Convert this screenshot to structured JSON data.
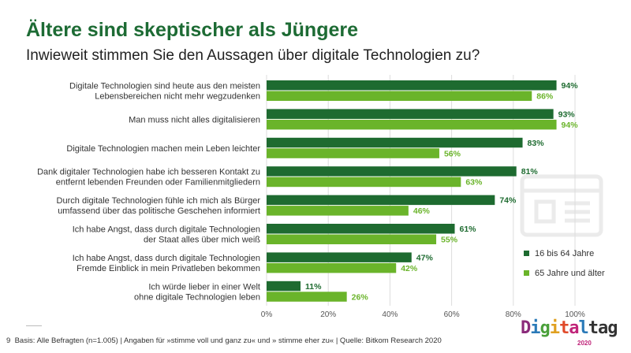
{
  "title": "Ältere sind skeptischer als Jüngere",
  "subtitle": "Inwieweit stimmen Sie den Aussagen über digitale Technologien zu?",
  "footer": {
    "page": "9",
    "text": "Basis: Alle Befragten (n=1.005) | Angaben für »stimme voll und ganz zu« und » stimme eher zu« | Quelle: Bitkom Research 2020"
  },
  "logo": {
    "text": "Digitaltag",
    "year": "2020"
  },
  "colors": {
    "dark": "#1e6b30",
    "light": "#6ab42a",
    "title": "#1d6b34"
  },
  "chart_data": {
    "type": "bar",
    "orientation": "horizontal",
    "categories": [
      [
        "Digitale Technologien sind heute aus den meisten",
        "Lebensbereichen nicht mehr wegzudenken"
      ],
      [
        "Man muss nicht alles digitalisieren"
      ],
      [
        "Digitale Technologien machen mein Leben leichter"
      ],
      [
        "Dank digitaler Technologien habe ich besseren Kontakt zu",
        "entfernt lebenden Freunden oder Familienmitgliedern"
      ],
      [
        "Durch digitale Technologien fühle ich mich als Bürger",
        "umfassend über das politische Geschehen informiert"
      ],
      [
        "Ich habe Angst, dass durch digitale Technologien",
        "der Staat alles über mich weiß"
      ],
      [
        "Ich habe Angst, dass durch digitale Technologien",
        "Fremde Einblick in mein Privatleben bekommen"
      ],
      [
        "Ich würde lieber in einer Welt",
        "ohne digitale Technologien leben"
      ]
    ],
    "series": [
      {
        "name": "16 bis 64 Jahre",
        "values": [
          94,
          93,
          83,
          81,
          74,
          61,
          47,
          11
        ]
      },
      {
        "name": "65 Jahre und älter",
        "values": [
          86,
          94,
          56,
          63,
          46,
          55,
          42,
          26
        ]
      }
    ],
    "xlim": [
      0,
      100
    ],
    "ticks": [
      "0%",
      "20%",
      "40%",
      "60%",
      "80%",
      "100%"
    ],
    "grid": true,
    "legend": "right"
  }
}
